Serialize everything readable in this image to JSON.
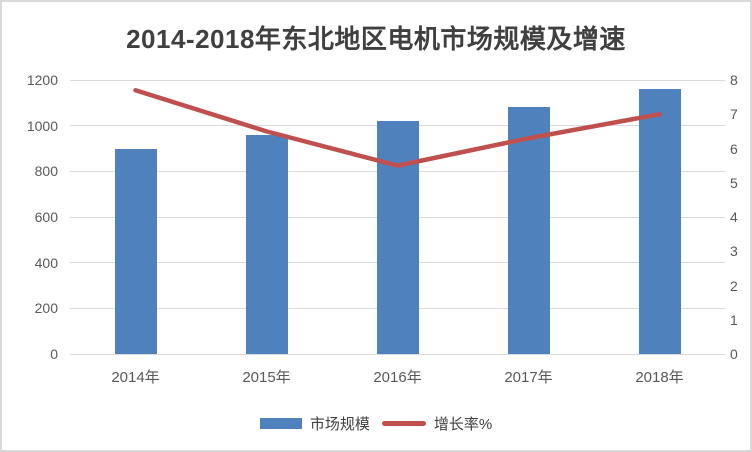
{
  "chart_data": {
    "type": "bar",
    "title": "2014-2018年东北地区电机市场规模及增速",
    "categories": [
      "2014年",
      "2015年",
      "2016年",
      "2017年",
      "2018年"
    ],
    "series": [
      {
        "name": "市场规模",
        "type": "bar",
        "axis": "left",
        "color": "#4F81BD",
        "values": [
          900,
          960,
          1020,
          1080,
          1160
        ]
      },
      {
        "name": "增长率%",
        "type": "line",
        "axis": "right",
        "color": "#C0504D",
        "values": [
          7.7,
          6.5,
          5.5,
          6.3,
          7.0
        ]
      }
    ],
    "axes": {
      "left": {
        "min": 0,
        "max": 1200,
        "ticks": [
          0,
          200,
          400,
          600,
          800,
          1000,
          1200
        ]
      },
      "right": {
        "min": 0,
        "max": 8,
        "ticks": [
          0,
          1,
          2,
          3,
          4,
          5,
          6,
          7,
          8
        ]
      }
    },
    "grid": true,
    "legend_position": "bottom",
    "colors": {
      "background": "#FFFFFF",
      "border": "#D9D9D9",
      "grid": "#D9D9D9",
      "axis_text": "#595959",
      "title_text": "#404040"
    }
  }
}
